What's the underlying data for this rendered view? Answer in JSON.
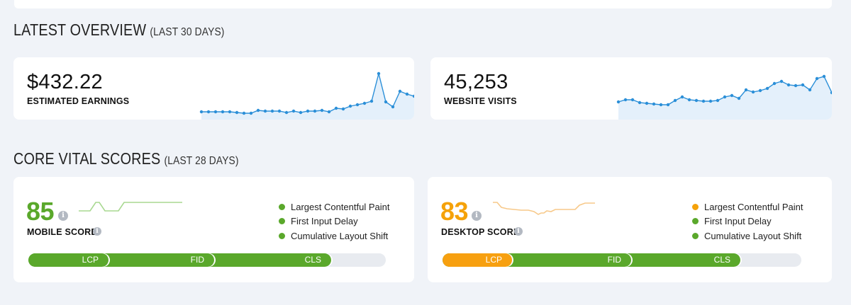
{
  "overview": {
    "title": "LATEST OVERVIEW",
    "subtitle": "(LAST 30 DAYS)",
    "earnings": {
      "value": "$432.22",
      "label": "ESTIMATED EARNINGS"
    },
    "visits": {
      "value": "45,253",
      "label": "WEBSITE VISITS"
    }
  },
  "vitals": {
    "title": "CORE VITAL SCORES",
    "subtitle": "(LAST 28 DAYS)",
    "mobile": {
      "score": "85",
      "label": "MOBILE SCORE",
      "legend": [
        {
          "label": "Largest Contentful Paint",
          "color": "#5aa82b"
        },
        {
          "label": "First Input Delay",
          "color": "#5aa82b"
        },
        {
          "label": "Cumulative Layout Shift",
          "color": "#5aa82b"
        }
      ],
      "bar": [
        {
          "label": "LCP",
          "color": "#5aa82b"
        },
        {
          "label": "FID",
          "color": "#5aa82b"
        },
        {
          "label": "CLS",
          "color": "#5aa82b"
        }
      ]
    },
    "desktop": {
      "score": "83",
      "label": "DESKTOP SCORE",
      "legend": [
        {
          "label": "Largest Contentful Paint",
          "color": "#f5a20a"
        },
        {
          "label": "First Input Delay",
          "color": "#5aa82b"
        },
        {
          "label": "Cumulative Layout Shift",
          "color": "#5aa82b"
        }
      ],
      "bar": [
        {
          "label": "LCP",
          "color": "#f7a010"
        },
        {
          "label": "FID",
          "color": "#5aa82b"
        },
        {
          "label": "CLS",
          "color": "#5aa82b"
        }
      ]
    }
  },
  "colors": {
    "green": "#5aa82b",
    "orange": "#f5a20a",
    "blue": "#2b8fd8"
  }
}
